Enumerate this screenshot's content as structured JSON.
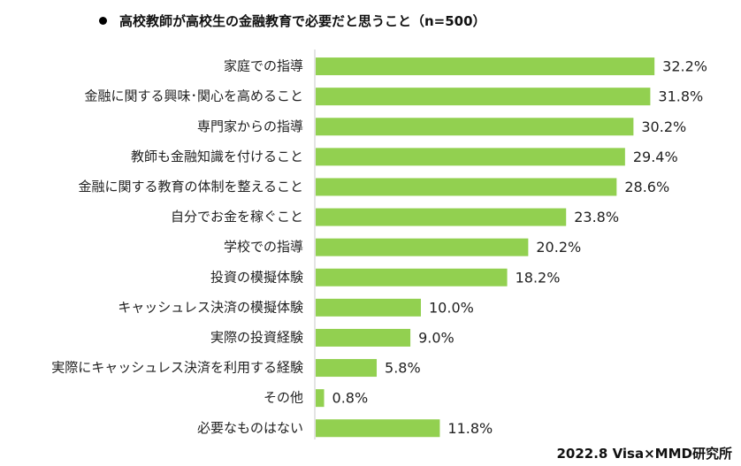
{
  "chart_data": {
    "type": "bar",
    "orientation": "horizontal",
    "title": "高校教師が高校生の金融教育で必要だと思うこと（n=500）",
    "categories": [
      "家庭での指導",
      "金融に関する興味･関心を高めること",
      "専門家からの指導",
      "教師も金融知識を付けること",
      "金融に関する教育の体制を整えること",
      "自分でお金を稼ぐこと",
      "学校での指導",
      "投資の模擬体験",
      "キャッシュレス決済の模擬体験",
      "実際の投資経験",
      "実際にキャッシュレス決済を利用する経験",
      "その他",
      "必要なものはない"
    ],
    "values": [
      32.2,
      31.8,
      30.2,
      29.4,
      28.6,
      23.8,
      20.2,
      18.2,
      10.0,
      9.0,
      5.8,
      0.8,
      11.8
    ],
    "value_labels": [
      "32.2%",
      "31.8%",
      "30.2%",
      "29.4%",
      "28.6%",
      "23.8%",
      "20.2%",
      "18.2%",
      "10.0%",
      "9.0%",
      "5.8%",
      "0.8%",
      "11.8%"
    ],
    "unit": "%",
    "xlim": [
      0,
      35
    ],
    "grid": false,
    "legend": "none",
    "bar_color": "#92D050"
  },
  "source": "2022.8 Visa×MMD研究所"
}
